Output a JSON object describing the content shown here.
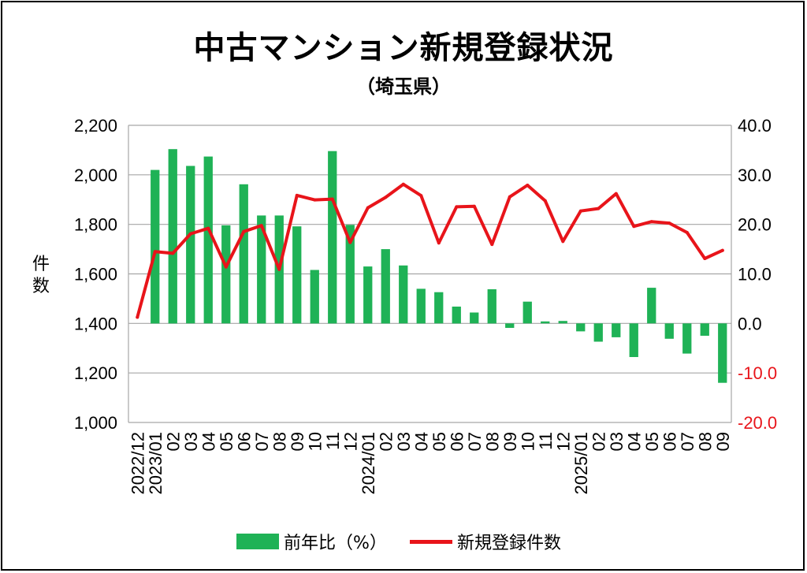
{
  "title": "中古マンション新規登録状況",
  "subtitle": "（埼玉県）",
  "colors": {
    "bar": "#1fb256",
    "line": "#e8141a",
    "grid": "#a6a6a6",
    "negative_tick": "#e8141a"
  },
  "chart_data": {
    "type": "bar+line",
    "title": "中古マンション新規登録状況",
    "subtitle": "（埼玉県）",
    "ylabel_left": "件数",
    "ylim_left": [
      1000,
      2200
    ],
    "yticks_left": [
      "1,000",
      "1,200",
      "1,400",
      "1,600",
      "1,800",
      "2,000",
      "2,200"
    ],
    "ylim_right": [
      -20,
      40
    ],
    "yticks_right": [
      "-20.0",
      "-10.0",
      "0.0",
      "10.0",
      "20.0",
      "30.0",
      "40.0"
    ],
    "grid": true,
    "legend_position": "bottom",
    "categories": [
      "2022/12",
      "2023/01",
      "02",
      "03",
      "04",
      "05",
      "06",
      "07",
      "08",
      "09",
      "10",
      "11",
      "12",
      "2024/01",
      "02",
      "03",
      "04",
      "05",
      "06",
      "07",
      "08",
      "09",
      "10",
      "11",
      "12",
      "2025/01",
      "02",
      "03",
      "04",
      "05",
      "06",
      "07",
      "08",
      "09"
    ],
    "series": [
      {
        "name": "前年比（%）",
        "type": "bar",
        "axis": "right",
        "values": [
          null,
          31,
          35.2,
          31.8,
          33.7,
          19.8,
          28.1,
          21.8,
          21.8,
          19.6,
          10.8,
          34.8,
          19.9,
          11.5,
          15,
          11.7,
          7,
          6.3,
          3.4,
          2.2,
          6.9,
          -0.9,
          4.4,
          0.4,
          0.5,
          -1.6,
          -3.7,
          -2.8,
          -6.8,
          7.2,
          -3.1,
          -6.1,
          -2.5,
          -12
        ]
      },
      {
        "name": "新規登録件数",
        "type": "line",
        "axis": "left",
        "values": [
          1425,
          1690,
          1683,
          1762,
          1784,
          1628,
          1771,
          1795,
          1618,
          1917,
          1899,
          1902,
          1727,
          1867,
          1909,
          1962,
          1916,
          1725,
          1871,
          1873,
          1719,
          1911,
          1958,
          1895,
          1731,
          1854,
          1864,
          1924,
          1792,
          1811,
          1805,
          1767,
          1662,
          1695
        ]
      }
    ]
  }
}
